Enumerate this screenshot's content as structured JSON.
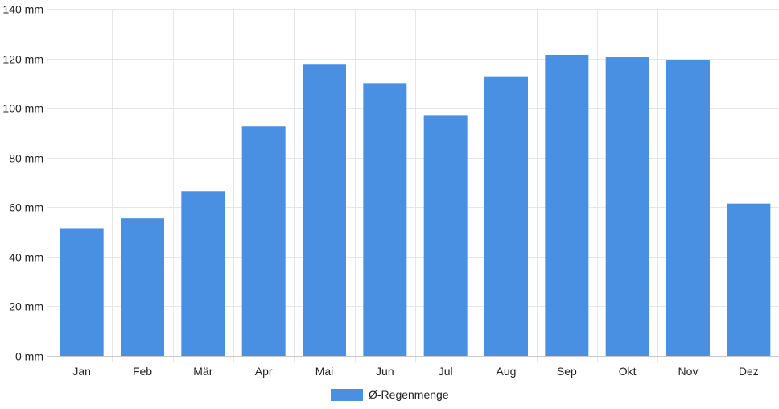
{
  "chart_data": {
    "type": "bar",
    "title": "",
    "xlabel": "",
    "ylabel": "",
    "categories": [
      "Jan",
      "Feb",
      "Mär",
      "Apr",
      "Mai",
      "Jun",
      "Jul",
      "Aug",
      "Sep",
      "Okt",
      "Nov",
      "Dez"
    ],
    "series": [
      {
        "name": "Ø-Regenmenge",
        "values": [
          51.5,
          55.5,
          66.5,
          92.5,
          117.5,
          110.0,
          97.0,
          112.5,
          121.5,
          120.5,
          119.5,
          61.5
        ],
        "color": "#4a90e2"
      }
    ],
    "ylim": [
      0,
      140
    ],
    "y_ticks": [
      0,
      20,
      40,
      60,
      80,
      100,
      120,
      140
    ],
    "y_unit": "mm",
    "grid": true,
    "legend_position": "bottom-center"
  }
}
